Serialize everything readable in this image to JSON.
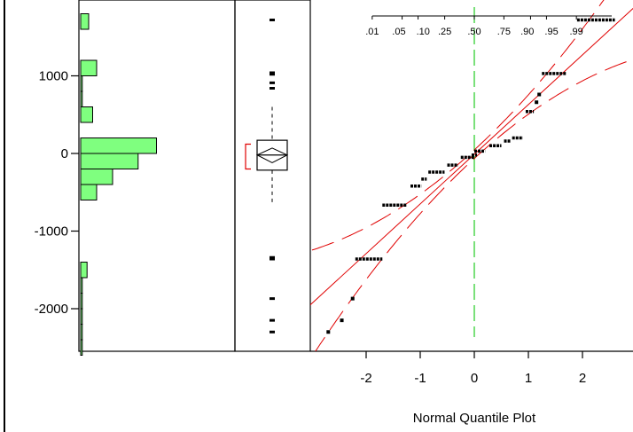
{
  "chart_data": {
    "type": "histogram-boxplot-normal-quantile",
    "y_axis": {
      "ticks": [
        1000,
        0,
        -1000,
        -2000
      ],
      "tick_labels": [
        "1000",
        "0",
        "-1000",
        "-2000"
      ],
      "range": [
        -2550,
        1950
      ]
    },
    "histogram": {
      "bin_width": 200,
      "bins": [
        {
          "low": 1600,
          "high": 1800,
          "count": 1
        },
        {
          "low": 1000,
          "high": 1200,
          "count": 2
        },
        {
          "low": 800,
          "high": 1000,
          "count": 0.2
        },
        {
          "low": 600,
          "high": 800,
          "count": 0.2
        },
        {
          "low": 400,
          "high": 600,
          "count": 1.5
        },
        {
          "low": 0,
          "high": 200,
          "count": 9.5
        },
        {
          "low": -200,
          "high": 0,
          "count": 7.2
        },
        {
          "low": -400,
          "high": -200,
          "count": 4
        },
        {
          "low": -600,
          "high": -400,
          "count": 2
        },
        {
          "low": -1600,
          "high": -1400,
          "count": 0.8
        },
        {
          "low": -1800,
          "high": -1600,
          "count": 0.2
        },
        {
          "low": -2000,
          "high": -1800,
          "count": 0.2
        },
        {
          "low": -2200,
          "high": -2000,
          "count": 0.2
        },
        {
          "low": -2400,
          "high": -2200,
          "count": 0.2
        },
        {
          "low": -2600,
          "high": -2400,
          "count": 0.2
        }
      ]
    },
    "boxplot": {
      "q1": -215,
      "median": -20,
      "q3": 170,
      "mean": -20,
      "whisker_low": -660,
      "whisker_high": 600,
      "confidence_diamond": [
        -120,
        70
      ],
      "shortest_half_bracket": [
        -200,
        120
      ],
      "points": [
        1720,
        1040,
        1030,
        1020,
        910,
        840,
        -1340,
        -1350,
        -1360,
        -1870,
        -2150,
        -2300
      ]
    },
    "normal_quantile": {
      "x_ticks": [
        -2,
        -1,
        0,
        1,
        2
      ],
      "x_tick_labels": [
        "-2",
        "-1",
        "0",
        "1",
        "2"
      ],
      "x_range": [
        -3,
        2.8
      ],
      "probability_labels": [
        ".01",
        ".05",
        ".10",
        ".25",
        ".50",
        ".75",
        ".90",
        ".95",
        ".99"
      ],
      "probability_values": [
        0.01,
        0.05,
        0.1,
        0.25,
        0.5,
        0.75,
        0.9,
        0.95,
        0.99
      ],
      "xlabel": "Normal Quantile Plot",
      "fit_line": {
        "intercept": -10,
        "slope": 640
      },
      "groups": [
        {
          "y": -2300,
          "q_start": -2.7,
          "q_end": -2.7
        },
        {
          "y": -2150,
          "q_start": -2.45,
          "q_end": -2.45
        },
        {
          "y": -1870,
          "q_start": -2.25,
          "q_end": -2.25
        },
        {
          "y": -1360,
          "q_start": -2.2,
          "q_end": -1.7
        },
        {
          "y": -665,
          "q_start": -1.7,
          "q_end": -1.25
        },
        {
          "y": -420,
          "q_start": -1.18,
          "q_end": -0.98
        },
        {
          "y": -330,
          "q_start": -0.98,
          "q_end": -0.88
        },
        {
          "y": -240,
          "q_start": -0.85,
          "q_end": -0.55
        },
        {
          "y": -150,
          "q_start": -0.5,
          "q_end": -0.3
        },
        {
          "y": -50,
          "q_start": -0.25,
          "q_end": 0.0
        },
        {
          "y": -20,
          "q_start": -0.05,
          "q_end": 0.05
        },
        {
          "y": 30,
          "q_start": 0.0,
          "q_end": 0.2
        },
        {
          "y": 100,
          "q_start": 0.28,
          "q_end": 0.5
        },
        {
          "y": 160,
          "q_start": 0.55,
          "q_end": 0.68
        },
        {
          "y": 200,
          "q_start": 0.7,
          "q_end": 0.9
        },
        {
          "y": 540,
          "q_start": 0.95,
          "q_end": 1.1
        },
        {
          "y": 660,
          "q_start": 1.15,
          "q_end": 1.15
        },
        {
          "y": 760,
          "q_start": 1.2,
          "q_end": 1.2
        },
        {
          "y": 1030,
          "q_start": 1.25,
          "q_end": 1.7
        },
        {
          "y": 1720,
          "q_start": 1.9,
          "q_end": 2.6
        }
      ]
    },
    "colors": {
      "histogram_fill": "#7fff7f",
      "fit_line": "#e00000",
      "median_reference": "#22cc22",
      "points": "#000000"
    }
  }
}
